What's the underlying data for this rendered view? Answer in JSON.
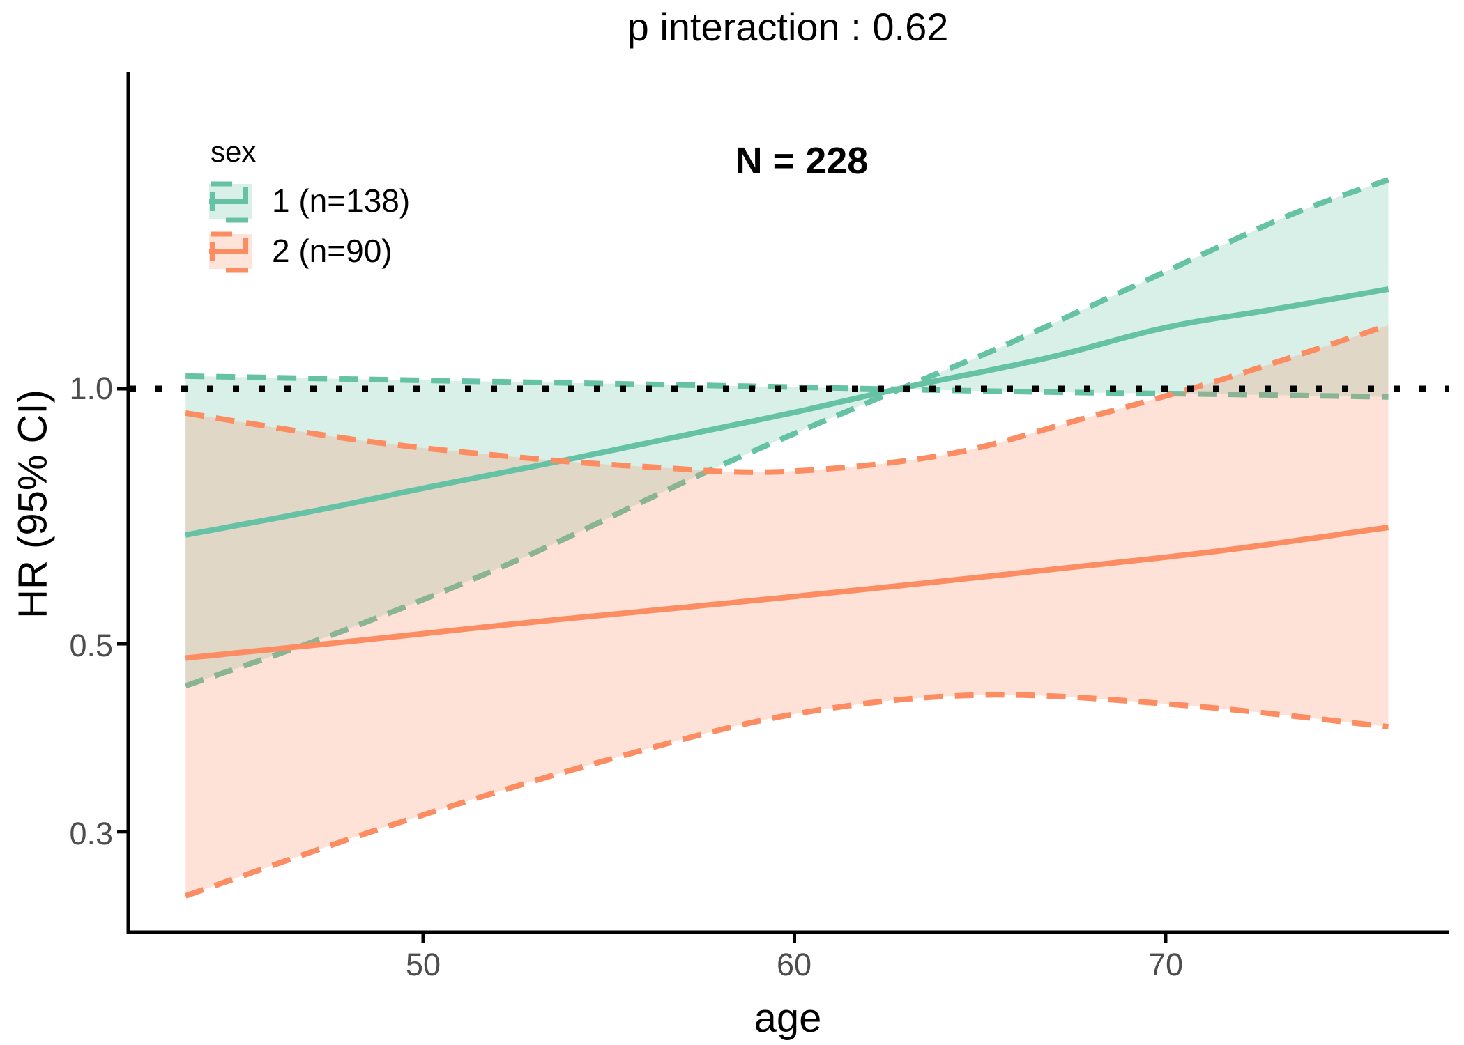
{
  "title": "p interaction : 0.62",
  "annotation": "N = 228",
  "legend": {
    "title": "sex",
    "items": [
      {
        "label": "1 (n=138)",
        "color": "#66C2A5"
      },
      {
        "label": "2 (n=90)",
        "color": "#FC8D62"
      }
    ]
  },
  "axes": {
    "x_label": "age",
    "y_label": "HR (95% CI)",
    "x_ticks": [
      "50",
      "60",
      "70"
    ],
    "y_ticks": [
      "1.0",
      "0.5",
      "0.3"
    ]
  },
  "colors": {
    "green": "#66C2A5",
    "orange": "#FC8D62",
    "green_fill": "#d9f0e8",
    "orange_fill": "#fee3d8",
    "band_alpha": 0.25,
    "reference_line": "#000000",
    "axis_line": "#000000",
    "tick_label": "#4d4d4d"
  },
  "chart_data": {
    "type": "line",
    "title": "p interaction : 0.62",
    "subtitle": "N = 228",
    "xlabel": "age",
    "ylabel": "HR (95% CI)",
    "y_scale": "log",
    "x_tick_values": [
      50,
      60,
      70
    ],
    "y_tick_values": [
      1.0,
      0.5,
      0.3
    ],
    "x_range": [
      43.6,
      76
    ],
    "reference_line_hr": 1.0,
    "legend_position": "top-left-inside",
    "series": [
      {
        "id": "sex1_fit",
        "name": "sex 1 fitted HR",
        "group": "1 (n=138)",
        "style": "solid",
        "color": "#66C2A5",
        "x": [
          43.6,
          47.1,
          50,
          53.6,
          57.4,
          60,
          63,
          66.8,
          70,
          73,
          76
        ],
        "hr": [
          0.672,
          0.718,
          0.763,
          0.82,
          0.888,
          0.938,
          1.004,
          1.087,
          1.181,
          1.243,
          1.311
        ]
      },
      {
        "id": "sex1_ci_flat",
        "name": "sex 1 CI edge (flat)",
        "group": "1 (n=138)",
        "style": "dashed",
        "color": "#66C2A5",
        "x": [
          43.6,
          50,
          55.5,
          60.2,
          63,
          66.8,
          71.5,
          76
        ],
        "hr": [
          1.035,
          1.023,
          1.013,
          1.004,
          0.998,
          0.991,
          0.985,
          0.978
        ]
      },
      {
        "id": "sex1_ci_steep",
        "name": "sex 1 CI edge (steep)",
        "group": "1 (n=138)",
        "style": "dashed",
        "color": "#66C2A5",
        "x": [
          43.6,
          48.0,
          52.7,
          57.8,
          63.1,
          65.7,
          70,
          73.3,
          76
        ],
        "hr": [
          0.446,
          0.521,
          0.632,
          0.804,
          1.01,
          1.127,
          1.375,
          1.6,
          1.765
        ]
      },
      {
        "id": "sex2_fit",
        "name": "sex 2 fitted HR",
        "group": "2 (n=90)",
        "style": "solid",
        "color": "#FC8D62",
        "x": [
          43.6,
          48.0,
          52.7,
          57.4,
          62.1,
          66.8,
          71.5,
          76
        ],
        "hr": [
          0.481,
          0.503,
          0.529,
          0.554,
          0.581,
          0.611,
          0.644,
          0.686
        ]
      },
      {
        "id": "sex2_ci_upper",
        "name": "sex 2 CI upper",
        "group": "2 (n=90)",
        "style": "dashed",
        "color": "#FC8D62",
        "x": [
          43.6,
          48.4,
          52.7,
          56.0,
          59.6,
          64.0,
          67.7,
          71.5,
          76
        ],
        "hr": [
          0.936,
          0.868,
          0.829,
          0.809,
          0.798,
          0.835,
          0.92,
          1.025,
          1.188
        ]
      },
      {
        "id": "sex2_ci_lower",
        "name": "sex 2 CI lower",
        "group": "2 (n=90)",
        "style": "dashed",
        "color": "#FC8D62",
        "x": [
          43.6,
          49.2,
          55.0,
          60.0,
          65.0,
          70.5,
          76
        ],
        "hr": [
          0.252,
          0.306,
          0.365,
          0.413,
          0.435,
          0.423,
          0.399
        ]
      }
    ],
    "bands": [
      {
        "name": "sex 1 confidence band",
        "color": "#66C2A5",
        "alpha": 0.25,
        "edge1": "sex1_ci_flat",
        "edge2": "sex1_ci_steep"
      },
      {
        "name": "sex 2 confidence band",
        "color": "#FC8D62",
        "alpha": 0.25,
        "edge1": "sex2_ci_upper",
        "edge2": "sex2_ci_lower"
      }
    ]
  }
}
